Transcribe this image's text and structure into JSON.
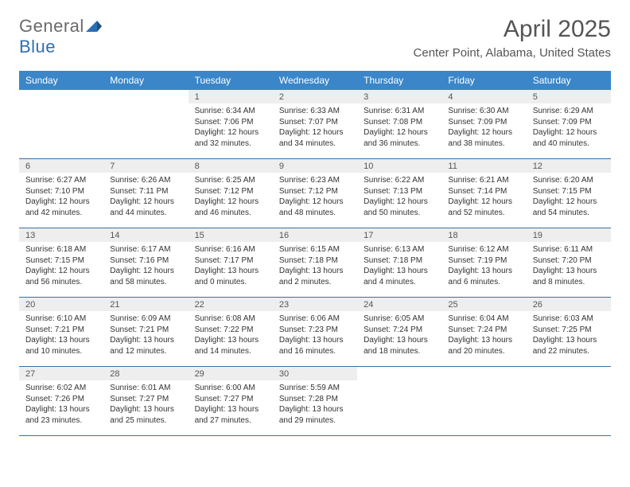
{
  "logo": {
    "text1": "General",
    "text2": "Blue"
  },
  "title": "April 2025",
  "location": "Center Point, Alabama, United States",
  "colors": {
    "header_bg": "#3a86c8",
    "header_text": "#ffffff",
    "divider": "#3a6fa5",
    "daynum_bg": "#eeeeee",
    "text": "#333333",
    "logo_gray": "#6a6a6a",
    "logo_blue": "#2d6fb5"
  },
  "dow": [
    "Sunday",
    "Monday",
    "Tuesday",
    "Wednesday",
    "Thursday",
    "Friday",
    "Saturday"
  ],
  "weeks": [
    [
      {
        "n": "",
        "sr": "",
        "ss": "",
        "dl1": "",
        "dl2": "",
        "empty": true
      },
      {
        "n": "",
        "sr": "",
        "ss": "",
        "dl1": "",
        "dl2": "",
        "empty": true
      },
      {
        "n": "1",
        "sr": "Sunrise: 6:34 AM",
        "ss": "Sunset: 7:06 PM",
        "dl1": "Daylight: 12 hours",
        "dl2": "and 32 minutes."
      },
      {
        "n": "2",
        "sr": "Sunrise: 6:33 AM",
        "ss": "Sunset: 7:07 PM",
        "dl1": "Daylight: 12 hours",
        "dl2": "and 34 minutes."
      },
      {
        "n": "3",
        "sr": "Sunrise: 6:31 AM",
        "ss": "Sunset: 7:08 PM",
        "dl1": "Daylight: 12 hours",
        "dl2": "and 36 minutes."
      },
      {
        "n": "4",
        "sr": "Sunrise: 6:30 AM",
        "ss": "Sunset: 7:09 PM",
        "dl1": "Daylight: 12 hours",
        "dl2": "and 38 minutes."
      },
      {
        "n": "5",
        "sr": "Sunrise: 6:29 AM",
        "ss": "Sunset: 7:09 PM",
        "dl1": "Daylight: 12 hours",
        "dl2": "and 40 minutes."
      }
    ],
    [
      {
        "n": "6",
        "sr": "Sunrise: 6:27 AM",
        "ss": "Sunset: 7:10 PM",
        "dl1": "Daylight: 12 hours",
        "dl2": "and 42 minutes."
      },
      {
        "n": "7",
        "sr": "Sunrise: 6:26 AM",
        "ss": "Sunset: 7:11 PM",
        "dl1": "Daylight: 12 hours",
        "dl2": "and 44 minutes."
      },
      {
        "n": "8",
        "sr": "Sunrise: 6:25 AM",
        "ss": "Sunset: 7:12 PM",
        "dl1": "Daylight: 12 hours",
        "dl2": "and 46 minutes."
      },
      {
        "n": "9",
        "sr": "Sunrise: 6:23 AM",
        "ss": "Sunset: 7:12 PM",
        "dl1": "Daylight: 12 hours",
        "dl2": "and 48 minutes."
      },
      {
        "n": "10",
        "sr": "Sunrise: 6:22 AM",
        "ss": "Sunset: 7:13 PM",
        "dl1": "Daylight: 12 hours",
        "dl2": "and 50 minutes."
      },
      {
        "n": "11",
        "sr": "Sunrise: 6:21 AM",
        "ss": "Sunset: 7:14 PM",
        "dl1": "Daylight: 12 hours",
        "dl2": "and 52 minutes."
      },
      {
        "n": "12",
        "sr": "Sunrise: 6:20 AM",
        "ss": "Sunset: 7:15 PM",
        "dl1": "Daylight: 12 hours",
        "dl2": "and 54 minutes."
      }
    ],
    [
      {
        "n": "13",
        "sr": "Sunrise: 6:18 AM",
        "ss": "Sunset: 7:15 PM",
        "dl1": "Daylight: 12 hours",
        "dl2": "and 56 minutes."
      },
      {
        "n": "14",
        "sr": "Sunrise: 6:17 AM",
        "ss": "Sunset: 7:16 PM",
        "dl1": "Daylight: 12 hours",
        "dl2": "and 58 minutes."
      },
      {
        "n": "15",
        "sr": "Sunrise: 6:16 AM",
        "ss": "Sunset: 7:17 PM",
        "dl1": "Daylight: 13 hours",
        "dl2": "and 0 minutes."
      },
      {
        "n": "16",
        "sr": "Sunrise: 6:15 AM",
        "ss": "Sunset: 7:18 PM",
        "dl1": "Daylight: 13 hours",
        "dl2": "and 2 minutes."
      },
      {
        "n": "17",
        "sr": "Sunrise: 6:13 AM",
        "ss": "Sunset: 7:18 PM",
        "dl1": "Daylight: 13 hours",
        "dl2": "and 4 minutes."
      },
      {
        "n": "18",
        "sr": "Sunrise: 6:12 AM",
        "ss": "Sunset: 7:19 PM",
        "dl1": "Daylight: 13 hours",
        "dl2": "and 6 minutes."
      },
      {
        "n": "19",
        "sr": "Sunrise: 6:11 AM",
        "ss": "Sunset: 7:20 PM",
        "dl1": "Daylight: 13 hours",
        "dl2": "and 8 minutes."
      }
    ],
    [
      {
        "n": "20",
        "sr": "Sunrise: 6:10 AM",
        "ss": "Sunset: 7:21 PM",
        "dl1": "Daylight: 13 hours",
        "dl2": "and 10 minutes."
      },
      {
        "n": "21",
        "sr": "Sunrise: 6:09 AM",
        "ss": "Sunset: 7:21 PM",
        "dl1": "Daylight: 13 hours",
        "dl2": "and 12 minutes."
      },
      {
        "n": "22",
        "sr": "Sunrise: 6:08 AM",
        "ss": "Sunset: 7:22 PM",
        "dl1": "Daylight: 13 hours",
        "dl2": "and 14 minutes."
      },
      {
        "n": "23",
        "sr": "Sunrise: 6:06 AM",
        "ss": "Sunset: 7:23 PM",
        "dl1": "Daylight: 13 hours",
        "dl2": "and 16 minutes."
      },
      {
        "n": "24",
        "sr": "Sunrise: 6:05 AM",
        "ss": "Sunset: 7:24 PM",
        "dl1": "Daylight: 13 hours",
        "dl2": "and 18 minutes."
      },
      {
        "n": "25",
        "sr": "Sunrise: 6:04 AM",
        "ss": "Sunset: 7:24 PM",
        "dl1": "Daylight: 13 hours",
        "dl2": "and 20 minutes."
      },
      {
        "n": "26",
        "sr": "Sunrise: 6:03 AM",
        "ss": "Sunset: 7:25 PM",
        "dl1": "Daylight: 13 hours",
        "dl2": "and 22 minutes."
      }
    ],
    [
      {
        "n": "27",
        "sr": "Sunrise: 6:02 AM",
        "ss": "Sunset: 7:26 PM",
        "dl1": "Daylight: 13 hours",
        "dl2": "and 23 minutes."
      },
      {
        "n": "28",
        "sr": "Sunrise: 6:01 AM",
        "ss": "Sunset: 7:27 PM",
        "dl1": "Daylight: 13 hours",
        "dl2": "and 25 minutes."
      },
      {
        "n": "29",
        "sr": "Sunrise: 6:00 AM",
        "ss": "Sunset: 7:27 PM",
        "dl1": "Daylight: 13 hours",
        "dl2": "and 27 minutes."
      },
      {
        "n": "30",
        "sr": "Sunrise: 5:59 AM",
        "ss": "Sunset: 7:28 PM",
        "dl1": "Daylight: 13 hours",
        "dl2": "and 29 minutes."
      },
      {
        "n": "",
        "sr": "",
        "ss": "",
        "dl1": "",
        "dl2": "",
        "empty": true
      },
      {
        "n": "",
        "sr": "",
        "ss": "",
        "dl1": "",
        "dl2": "",
        "empty": true
      },
      {
        "n": "",
        "sr": "",
        "ss": "",
        "dl1": "",
        "dl2": "",
        "empty": true
      }
    ]
  ]
}
